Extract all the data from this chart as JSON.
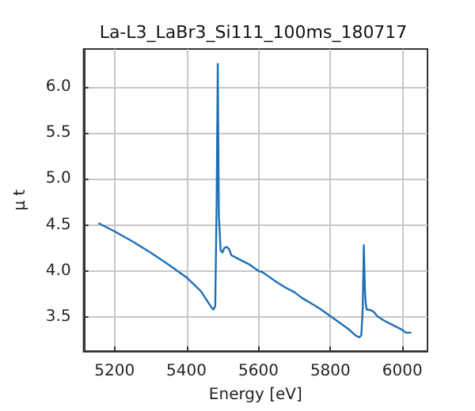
{
  "chart_data": {
    "type": "line",
    "title": "La-L3_LaBr3_Si111_100ms_180717",
    "xlabel": "Energy [eV]",
    "ylabel": "μ t",
    "x": [
      5155,
      5200,
      5250,
      5300,
      5350,
      5400,
      5440,
      5460,
      5470,
      5475,
      5480,
      5484,
      5487,
      5490,
      5495,
      5500,
      5505,
      5512,
      5518,
      5525,
      5550,
      5575,
      5600,
      5610,
      5625,
      5650,
      5675,
      5700,
      5720,
      5750,
      5775,
      5800,
      5825,
      5850,
      5870,
      5880,
      5886,
      5890,
      5893,
      5896,
      5898,
      5901,
      5905,
      5915,
      5922,
      5930,
      5950,
      5975,
      6000,
      6010,
      6025
    ],
    "series": [
      {
        "color": "#1f6fb4",
        "values": [
          4.52,
          4.43,
          4.32,
          4.2,
          4.07,
          3.93,
          3.78,
          3.66,
          3.6,
          3.58,
          3.62,
          4.8,
          6.25,
          4.6,
          4.22,
          4.2,
          4.25,
          4.26,
          4.24,
          4.17,
          4.12,
          4.07,
          4.0,
          3.99,
          3.95,
          3.88,
          3.82,
          3.77,
          3.71,
          3.64,
          3.58,
          3.51,
          3.44,
          3.37,
          3.3,
          3.28,
          3.3,
          3.6,
          4.28,
          3.8,
          3.65,
          3.58,
          3.58,
          3.57,
          3.55,
          3.51,
          3.46,
          3.41,
          3.36,
          3.33,
          3.33
        ]
      }
    ],
    "xlim": [
      5114,
      6070
    ],
    "xticks": [
      5200,
      5400,
      5600,
      5800,
      6000
    ],
    "ylim": [
      3.13,
      6.41
    ],
    "yticks": [
      {
        "value": 3.5,
        "label": "3.5"
      },
      {
        "value": 4,
        "label": "4.0"
      },
      {
        "value": 4.5,
        "label": "4.5"
      },
      {
        "value": 5,
        "label": "5.0"
      },
      {
        "value": 5.5,
        "label": "5.5"
      },
      {
        "value": 6,
        "label": "6.0"
      }
    ],
    "grid": true,
    "marker": "none",
    "line_style": "solid"
  }
}
